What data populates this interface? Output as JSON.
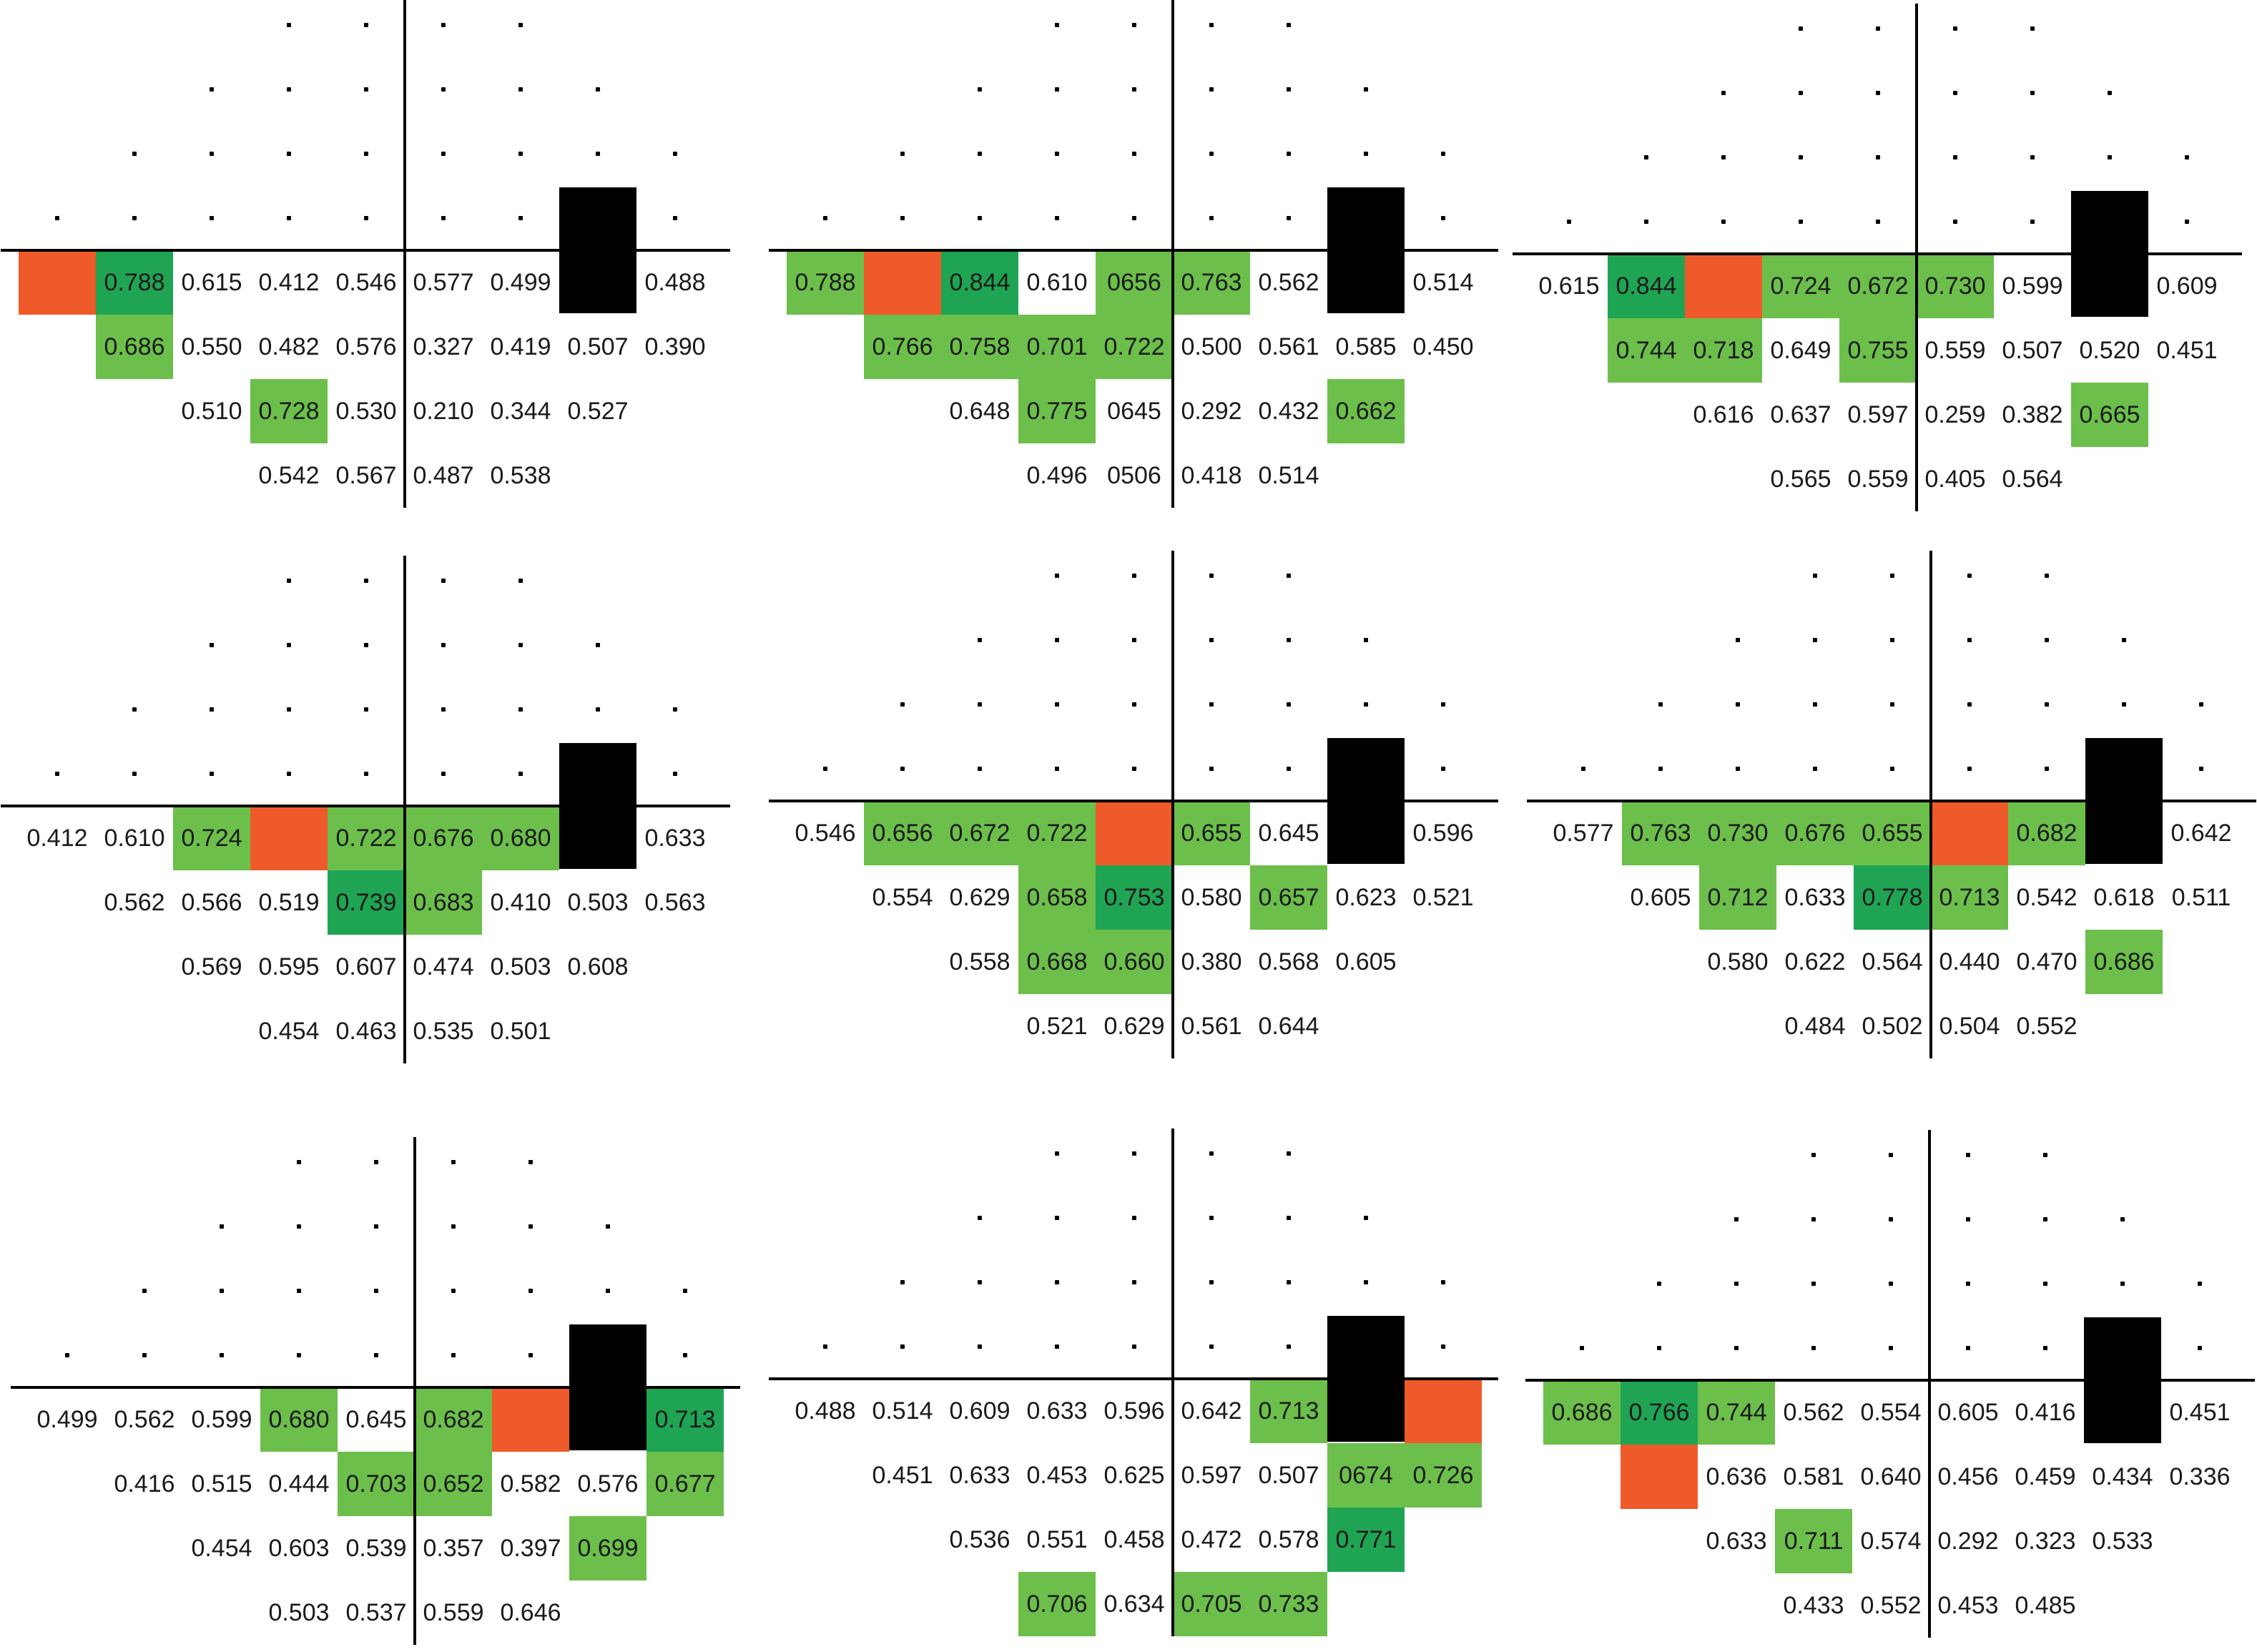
{
  "colors": {
    "light_green": "#6cbf4a",
    "dark_green": "#1fa454",
    "orange": "#ef5a2a",
    "black": "#000000"
  },
  "legend_codes": {
    "L": "light-green cell",
    "D": "dark-green cell",
    "O": "orange cell",
    "B": "black block (blind spot)"
  },
  "panels": [
    {
      "rows": [
        [
          [
            "",
            "O"
          ],
          [
            "0.788",
            "D"
          ],
          [
            "0.615",
            ""
          ],
          [
            "0.412",
            ""
          ],
          [
            "0.546",
            ""
          ],
          [
            "0.577",
            ""
          ],
          [
            "0.499",
            ""
          ],
          [
            "",
            "B"
          ],
          [
            "0.488",
            ""
          ]
        ],
        [
          [
            "0.686",
            "L"
          ],
          [
            "0.550",
            ""
          ],
          [
            "0.482",
            ""
          ],
          [
            "0.576",
            ""
          ],
          [
            "0.327",
            ""
          ],
          [
            "0.419",
            ""
          ],
          [
            "0.507",
            ""
          ],
          [
            "0.390",
            ""
          ]
        ],
        [
          [
            "0.510",
            ""
          ],
          [
            "0.728",
            "L"
          ],
          [
            "0.530",
            ""
          ],
          [
            "0.210",
            ""
          ],
          [
            "0.344",
            ""
          ],
          [
            "0.527",
            ""
          ]
        ],
        [
          [
            "0.542",
            ""
          ],
          [
            "0.567",
            ""
          ],
          [
            "0.487",
            ""
          ],
          [
            "0.538",
            ""
          ]
        ]
      ]
    },
    {
      "rows": [
        [
          [
            "0.788",
            "L"
          ],
          [
            "",
            "O"
          ],
          [
            "0.844",
            "D"
          ],
          [
            "0.610",
            ""
          ],
          [
            "0656",
            "L"
          ],
          [
            "0.763",
            "L"
          ],
          [
            "0.562",
            ""
          ],
          [
            "",
            "B"
          ],
          [
            "0.514",
            ""
          ]
        ],
        [
          [
            "0.766",
            "L"
          ],
          [
            "0.758",
            "L"
          ],
          [
            "0.701",
            "L"
          ],
          [
            "0.722",
            "L"
          ],
          [
            "0.500",
            ""
          ],
          [
            "0.561",
            ""
          ],
          [
            "0.585",
            ""
          ],
          [
            "0.450",
            ""
          ]
        ],
        [
          [
            "0.648",
            ""
          ],
          [
            "0.775",
            "L"
          ],
          [
            "0645",
            ""
          ],
          [
            "0.292",
            ""
          ],
          [
            "0.432",
            ""
          ],
          [
            "0.662",
            "L"
          ]
        ],
        [
          [
            "0.496",
            ""
          ],
          [
            "0506",
            ""
          ],
          [
            "0.418",
            ""
          ],
          [
            "0.514",
            ""
          ]
        ]
      ]
    },
    {
      "rows": [
        [
          [
            "0.615",
            ""
          ],
          [
            "0.844",
            "D"
          ],
          [
            "",
            "O"
          ],
          [
            "0.724",
            "L"
          ],
          [
            "0.672",
            "L"
          ],
          [
            "0.730",
            "L"
          ],
          [
            "0.599",
            ""
          ],
          [
            "",
            "B"
          ],
          [
            "0.609",
            ""
          ]
        ],
        [
          [
            "0.744",
            "L"
          ],
          [
            "0.718",
            "L"
          ],
          [
            "0.649",
            ""
          ],
          [
            "0.755",
            "L"
          ],
          [
            "0.559",
            ""
          ],
          [
            "0.507",
            ""
          ],
          [
            "0.520",
            ""
          ],
          [
            "0.451",
            ""
          ]
        ],
        [
          [
            "0.616",
            ""
          ],
          [
            "0.637",
            ""
          ],
          [
            "0.597",
            ""
          ],
          [
            "0.259",
            ""
          ],
          [
            "0.382",
            ""
          ],
          [
            "0.665",
            "L"
          ]
        ],
        [
          [
            "0.565",
            ""
          ],
          [
            "0.559",
            ""
          ],
          [
            "0.405",
            ""
          ],
          [
            "0.564",
            ""
          ]
        ]
      ]
    },
    {
      "rows": [
        [
          [
            "0.412",
            ""
          ],
          [
            "0.610",
            ""
          ],
          [
            "0.724",
            "L"
          ],
          [
            "",
            "O"
          ],
          [
            "0.722",
            "L"
          ],
          [
            "0.676",
            "L"
          ],
          [
            "0.680",
            "L"
          ],
          [
            "",
            "B"
          ],
          [
            "0.633",
            ""
          ]
        ],
        [
          [
            "0.562",
            ""
          ],
          [
            "0.566",
            ""
          ],
          [
            "0.519",
            ""
          ],
          [
            "0.739",
            "D"
          ],
          [
            "0.683",
            "L"
          ],
          [
            "0.410",
            ""
          ],
          [
            "0.503",
            ""
          ],
          [
            "0.563",
            ""
          ]
        ],
        [
          [
            "0.569",
            ""
          ],
          [
            "0.595",
            ""
          ],
          [
            "0.607",
            ""
          ],
          [
            "0.474",
            ""
          ],
          [
            "0.503",
            ""
          ],
          [
            "0.608",
            ""
          ]
        ],
        [
          [
            "0.454",
            ""
          ],
          [
            "0.463",
            ""
          ],
          [
            "0.535",
            ""
          ],
          [
            "0.501",
            ""
          ]
        ]
      ]
    },
    {
      "rows": [
        [
          [
            "0.546",
            ""
          ],
          [
            "0.656",
            "L"
          ],
          [
            "0.672",
            "L"
          ],
          [
            "0.722",
            "L"
          ],
          [
            "",
            "O"
          ],
          [
            "0.655",
            "L"
          ],
          [
            "0.645",
            ""
          ],
          [
            "",
            "B"
          ],
          [
            "0.596",
            ""
          ]
        ],
        [
          [
            "0.554",
            ""
          ],
          [
            "0.629",
            ""
          ],
          [
            "0.658",
            "L"
          ],
          [
            "0.753",
            "D"
          ],
          [
            "0.580",
            ""
          ],
          [
            "0.657",
            "L"
          ],
          [
            "0.623",
            ""
          ],
          [
            "0.521",
            ""
          ]
        ],
        [
          [
            "0.558",
            ""
          ],
          [
            "0.668",
            "L"
          ],
          [
            "0.660",
            "L"
          ],
          [
            "0.380",
            ""
          ],
          [
            "0.568",
            ""
          ],
          [
            "0.605",
            ""
          ]
        ],
        [
          [
            "0.521",
            ""
          ],
          [
            "0.629",
            ""
          ],
          [
            "0.561",
            ""
          ],
          [
            "0.644",
            ""
          ]
        ]
      ]
    },
    {
      "rows": [
        [
          [
            "0.577",
            ""
          ],
          [
            "0.763",
            "L"
          ],
          [
            "0.730",
            "L"
          ],
          [
            "0.676",
            "L"
          ],
          [
            "0.655",
            "L"
          ],
          [
            "",
            "O"
          ],
          [
            "0.682",
            "L"
          ],
          [
            "",
            "B"
          ],
          [
            "0.642",
            ""
          ]
        ],
        [
          [
            "0.605",
            ""
          ],
          [
            "0.712",
            "L"
          ],
          [
            "0.633",
            ""
          ],
          [
            "0.778",
            "D"
          ],
          [
            "0.713",
            "L"
          ],
          [
            "0.542",
            ""
          ],
          [
            "0.618",
            ""
          ],
          [
            "0.511",
            ""
          ]
        ],
        [
          [
            "0.580",
            ""
          ],
          [
            "0.622",
            ""
          ],
          [
            "0.564",
            ""
          ],
          [
            "0.440",
            ""
          ],
          [
            "0.470",
            ""
          ],
          [
            "0.686",
            "L"
          ]
        ],
        [
          [
            "0.484",
            ""
          ],
          [
            "0.502",
            ""
          ],
          [
            "0.504",
            ""
          ],
          [
            "0.552",
            ""
          ]
        ]
      ]
    },
    {
      "rows": [
        [
          [
            "0.499",
            ""
          ],
          [
            "0.562",
            ""
          ],
          [
            "0.599",
            ""
          ],
          [
            "0.680",
            "L"
          ],
          [
            "0.645",
            ""
          ],
          [
            "0.682",
            "L"
          ],
          [
            "",
            "O"
          ],
          [
            "",
            "B"
          ],
          [
            "0.713",
            "D"
          ]
        ],
        [
          [
            "0.416",
            ""
          ],
          [
            "0.515",
            ""
          ],
          [
            "0.444",
            ""
          ],
          [
            "0.703",
            "L"
          ],
          [
            "0.652",
            "L"
          ],
          [
            "0.582",
            ""
          ],
          [
            "0.576",
            ""
          ],
          [
            "0.677",
            "L"
          ]
        ],
        [
          [
            "0.454",
            ""
          ],
          [
            "0.603",
            ""
          ],
          [
            "0.539",
            ""
          ],
          [
            "0.357",
            ""
          ],
          [
            "0.397",
            ""
          ],
          [
            "0.699",
            "L"
          ]
        ],
        [
          [
            "0.503",
            ""
          ],
          [
            "0.537",
            ""
          ],
          [
            "0.559",
            ""
          ],
          [
            "0.646",
            ""
          ]
        ]
      ]
    },
    {
      "rows": [
        [
          [
            "0.488",
            ""
          ],
          [
            "0.514",
            ""
          ],
          [
            "0.609",
            ""
          ],
          [
            "0.633",
            ""
          ],
          [
            "0.596",
            ""
          ],
          [
            "0.642",
            ""
          ],
          [
            "0.713",
            "L"
          ],
          [
            "",
            "B"
          ],
          [
            "",
            "O"
          ]
        ],
        [
          [
            "0.451",
            ""
          ],
          [
            "0.633",
            ""
          ],
          [
            "0.453",
            ""
          ],
          [
            "0.625",
            ""
          ],
          [
            "0.597",
            ""
          ],
          [
            "0.507",
            ""
          ],
          [
            "0674",
            "L"
          ],
          [
            "0.726",
            "L"
          ]
        ],
        [
          [
            "0.536",
            ""
          ],
          [
            "0.551",
            ""
          ],
          [
            "0.458",
            ""
          ],
          [
            "0.472",
            ""
          ],
          [
            "0.578",
            ""
          ],
          [
            "0.771",
            "D"
          ]
        ],
        [
          [
            "0.706",
            "L"
          ],
          [
            "0.634",
            ""
          ],
          [
            "0.705",
            "L"
          ],
          [
            "0.733",
            "L"
          ]
        ]
      ]
    },
    {
      "rows": [
        [
          [
            "0.686",
            "L"
          ],
          [
            "0.766",
            "D"
          ],
          [
            "0.744",
            "L"
          ],
          [
            "0.562",
            ""
          ],
          [
            "0.554",
            ""
          ],
          [
            "0.605",
            ""
          ],
          [
            "0.416",
            ""
          ],
          [
            "",
            "B"
          ],
          [
            "0.451",
            ""
          ]
        ],
        [
          [
            "",
            "O"
          ],
          [
            "0.636",
            ""
          ],
          [
            "0.581",
            ""
          ],
          [
            "0.640",
            ""
          ],
          [
            "0.456",
            ""
          ],
          [
            "0.459",
            ""
          ],
          [
            "0.434",
            ""
          ],
          [
            "0.336",
            ""
          ]
        ],
        [
          [
            "0.633",
            ""
          ],
          [
            "0.711",
            "L"
          ],
          [
            "0.574",
            ""
          ],
          [
            "0.292",
            ""
          ],
          [
            "0.323",
            ""
          ],
          [
            "0.533",
            ""
          ]
        ],
        [
          [
            "0.433",
            ""
          ],
          [
            "0.552",
            ""
          ],
          [
            "0.453",
            ""
          ],
          [
            "0.485",
            ""
          ]
        ]
      ]
    }
  ]
}
